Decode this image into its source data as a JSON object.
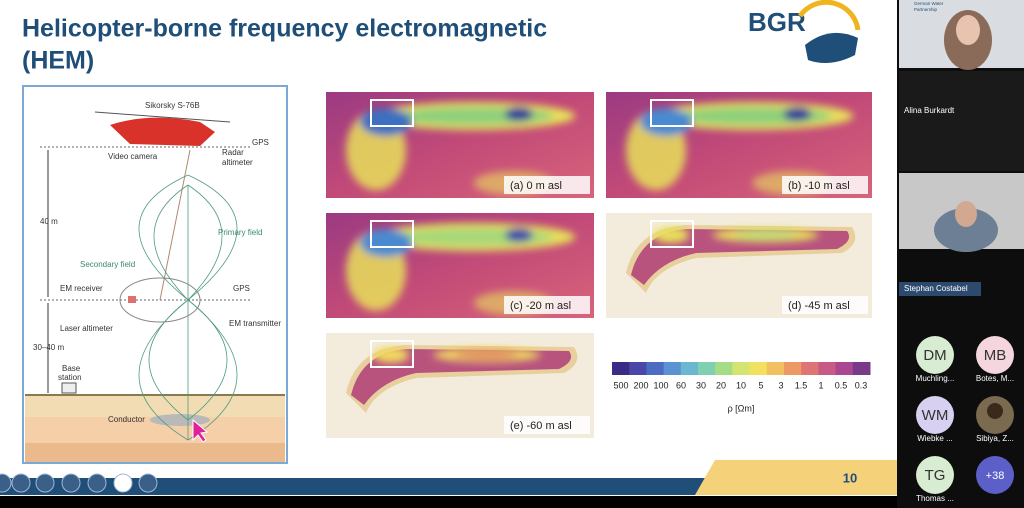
{
  "slide": {
    "title_line1": "Helicopter-borne frequency electromagnetic",
    "title_line2": "(HEM)",
    "logo": "BGR",
    "page_number": "10"
  },
  "diagram": {
    "labels": [
      "Sikorsky S-76B",
      "GPS",
      "Video camera",
      "Radar",
      "altimeter",
      "40 m",
      "Primary field",
      "Secondary field",
      "EM receiver",
      "GPS",
      "Laser altimeter",
      "EM transmitter",
      "30–40 m",
      "Base",
      "station",
      "Conductor"
    ]
  },
  "maps": {
    "panels": [
      "(a)   0 m asl",
      "(b) -10 m asl",
      "(c) -20 m asl",
      "(d) -45 m asl",
      "(e) -60 m asl"
    ]
  },
  "colorbar": {
    "ticks": [
      "500",
      "200",
      "100",
      "60",
      "30",
      "20",
      "10",
      "5",
      "3",
      "1.5",
      "1",
      "0.5",
      "0.3"
    ],
    "unit": "ρ [Ωm]"
  },
  "participants": {
    "partner_logo": [
      "German Water",
      "Partnership"
    ],
    "speakers": [
      "Alina Burkardt",
      "Stephan Costabel"
    ],
    "tiles": [
      {
        "initials": "DM",
        "name": "Muchling..."
      },
      {
        "initials": "MB",
        "name": "Botes, M..."
      },
      {
        "initials": "WM",
        "name": "Wiebke ..."
      },
      {
        "name": "Sibiya, Z..."
      },
      {
        "initials": "TG",
        "name": "Thomas ..."
      }
    ],
    "more": "+38"
  }
}
